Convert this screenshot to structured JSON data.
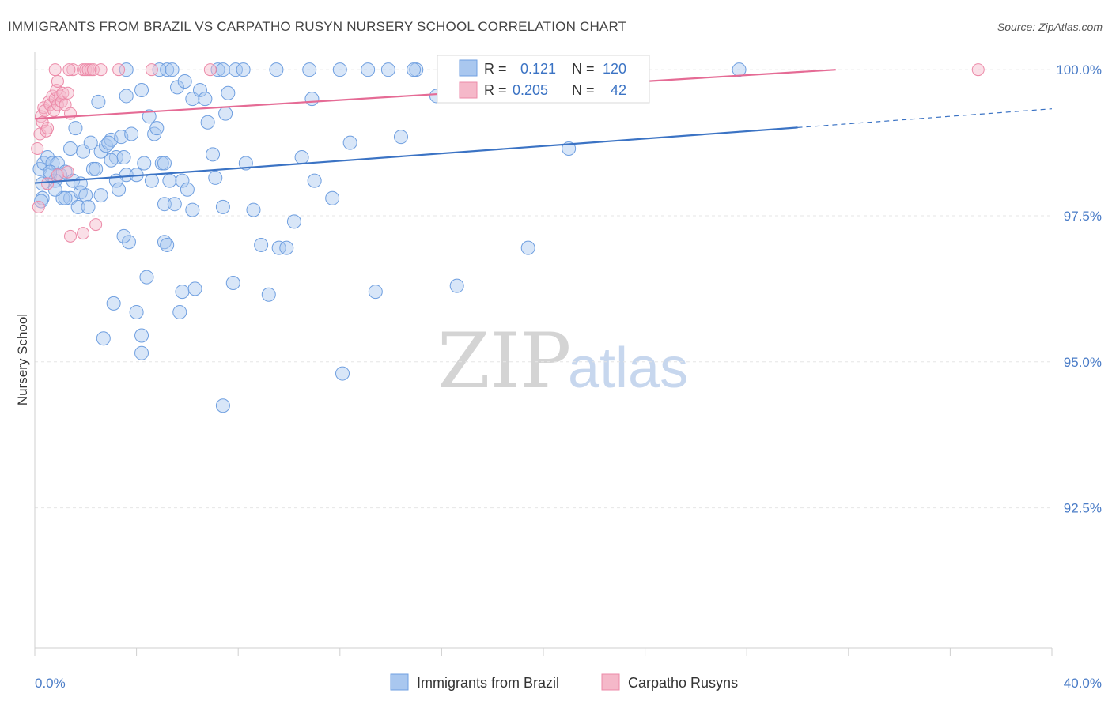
{
  "chart_data": {
    "type": "scatter",
    "title": "IMMIGRANTS FROM BRAZIL VS CARPATHO RUSYN NURSERY SCHOOL CORRELATION CHART",
    "source": "Source: ZipAtlas.com",
    "ylabel": "Nursery School",
    "xlabel": "",
    "xlim": [
      0,
      40
    ],
    "ylim": [
      90.1,
      100.3
    ],
    "x_tick_labels": [
      {
        "value": 0,
        "label": "0.0%"
      },
      {
        "value": 40,
        "label": "40.0%"
      }
    ],
    "y_tick_labels": [
      {
        "value": 100,
        "label": "100.0%"
      },
      {
        "value": 97.5,
        "label": "97.5%"
      },
      {
        "value": 95,
        "label": "95.0%"
      },
      {
        "value": 92.5,
        "label": "92.5%"
      }
    ],
    "legend": [
      {
        "name": "Immigrants from Brazil",
        "color": "#a9c7ef"
      },
      {
        "name": "Carpatho Rusyns",
        "color": "#f5b8c9"
      }
    ],
    "stats_box": {
      "rows": [
        {
          "r_label": "R =",
          "r_value": "0.121",
          "n_label": "N =",
          "n_value": "120"
        },
        {
          "r_label": "R =",
          "r_value": "0.205",
          "n_label": "N =",
          "n_value": "42"
        }
      ]
    },
    "watermark": {
      "zip": "ZIP",
      "atlas": "atlas"
    },
    "series": [
      {
        "name": "Immigrants from Brazil",
        "color": "#a9c7ef",
        "stroke": "#6f9fe0",
        "trend": {
          "x0": 0,
          "y0": 98.06,
          "x1": 30,
          "y1": 99.01,
          "dash_to_x": 40,
          "dash_to_y": 99.33,
          "color": "#3b73c4"
        },
        "points": [
          [
            0.2,
            98.3
          ],
          [
            0.3,
            98.05
          ],
          [
            0.3,
            97.8
          ],
          [
            0.35,
            98.4
          ],
          [
            0.5,
            98.5
          ],
          [
            0.6,
            98.2
          ],
          [
            0.7,
            98.4
          ],
          [
            0.8,
            98.1
          ],
          [
            0.9,
            98.4
          ],
          [
            1.0,
            98.2
          ],
          [
            1.2,
            98.25
          ],
          [
            1.5,
            98.1
          ],
          [
            1.1,
            97.8
          ],
          [
            1.4,
            97.8
          ],
          [
            1.8,
            97.9
          ],
          [
            1.7,
            97.65
          ],
          [
            2.0,
            97.85
          ],
          [
            1.9,
            98.6
          ],
          [
            2.3,
            98.3
          ],
          [
            2.2,
            98.75
          ],
          [
            2.6,
            98.6
          ],
          [
            2.8,
            98.7
          ],
          [
            3.0,
            98.8
          ],
          [
            3.2,
            98.5
          ],
          [
            3.4,
            98.85
          ],
          [
            3.5,
            98.5
          ],
          [
            3.6,
            98.2
          ],
          [
            3.8,
            98.9
          ],
          [
            4.0,
            98.2
          ],
          [
            4.3,
            98.4
          ],
          [
            4.6,
            98.1
          ],
          [
            4.7,
            98.9
          ],
          [
            5.0,
            98.4
          ],
          [
            5.3,
            98.1
          ],
          [
            5.8,
            98.1
          ],
          [
            6.0,
            97.95
          ],
          [
            6.2,
            97.6
          ],
          [
            5.1,
            97.7
          ],
          [
            5.5,
            97.7
          ],
          [
            3.2,
            98.1
          ],
          [
            3.3,
            97.95
          ],
          [
            2.6,
            97.85
          ],
          [
            1.8,
            98.05
          ],
          [
            2.4,
            98.3
          ],
          [
            1.6,
            99.0
          ],
          [
            2.5,
            99.45
          ],
          [
            3.6,
            99.55
          ],
          [
            4.2,
            99.65
          ],
          [
            4.5,
            99.2
          ],
          [
            4.8,
            99.0
          ],
          [
            4.9,
            100.0
          ],
          [
            5.2,
            100.0
          ],
          [
            5.4,
            100.0
          ],
          [
            5.6,
            99.7
          ],
          [
            5.9,
            99.8
          ],
          [
            6.2,
            99.5
          ],
          [
            6.5,
            99.65
          ],
          [
            6.7,
            99.5
          ],
          [
            6.8,
            99.1
          ],
          [
            7.0,
            98.55
          ],
          [
            7.2,
            100.0
          ],
          [
            7.4,
            100.0
          ],
          [
            7.5,
            99.25
          ],
          [
            7.6,
            99.6
          ],
          [
            7.9,
            100.0
          ],
          [
            8.2,
            100.0
          ],
          [
            8.3,
            98.4
          ],
          [
            7.1,
            98.15
          ],
          [
            7.4,
            97.65
          ],
          [
            8.6,
            97.6
          ],
          [
            8.9,
            97.0
          ],
          [
            9.6,
            96.95
          ],
          [
            9.9,
            96.95
          ],
          [
            10.2,
            97.4
          ],
          [
            10.5,
            98.5
          ],
          [
            10.9,
            99.5
          ],
          [
            11.0,
            98.1
          ],
          [
            11.7,
            97.8
          ],
          [
            12.0,
            100.0
          ],
          [
            12.4,
            98.75
          ],
          [
            13.1,
            100.0
          ],
          [
            13.9,
            100.0
          ],
          [
            14.4,
            98.85
          ],
          [
            15.0,
            100.0
          ],
          [
            15.8,
            99.55
          ],
          [
            9.5,
            100.0
          ],
          [
            3.6,
            100.0
          ],
          [
            5.1,
            98.4
          ],
          [
            3.7,
            97.05
          ],
          [
            3.5,
            97.15
          ],
          [
            5.1,
            97.05
          ],
          [
            5.2,
            97.0
          ],
          [
            4.4,
            96.45
          ],
          [
            5.8,
            96.2
          ],
          [
            6.3,
            96.25
          ],
          [
            7.8,
            96.35
          ],
          [
            9.2,
            96.15
          ],
          [
            3.1,
            96.0
          ],
          [
            4.0,
            95.85
          ],
          [
            5.7,
            95.85
          ],
          [
            4.2,
            95.45
          ],
          [
            2.7,
            95.4
          ],
          [
            4.2,
            95.15
          ],
          [
            12.1,
            94.8
          ],
          [
            7.4,
            94.25
          ],
          [
            13.4,
            96.2
          ],
          [
            16.6,
            96.3
          ],
          [
            19.4,
            96.95
          ],
          [
            21.0,
            98.65
          ],
          [
            27.7,
            100.0
          ],
          [
            14.9,
            100.0
          ],
          [
            10.8,
            100.0
          ],
          [
            2.9,
            98.75
          ],
          [
            1.4,
            98.65
          ],
          [
            0.6,
            98.25
          ],
          [
            2.1,
            97.65
          ],
          [
            1.2,
            97.8
          ],
          [
            0.8,
            97.95
          ],
          [
            0.25,
            97.75
          ],
          [
            3.0,
            98.45
          ]
        ]
      },
      {
        "name": "Carpatho Rusyns",
        "color": "#f5b8c9",
        "stroke": "#ec8aa8",
        "trend": {
          "x0": 0,
          "y0": 99.16,
          "x1": 31.5,
          "y1": 100.0,
          "color": "#e56b95"
        },
        "points": [
          [
            0.1,
            98.65
          ],
          [
            0.2,
            98.9
          ],
          [
            0.25,
            99.2
          ],
          [
            0.3,
            99.1
          ],
          [
            0.35,
            99.35
          ],
          [
            0.4,
            99.3
          ],
          [
            0.45,
            98.95
          ],
          [
            0.5,
            99.0
          ],
          [
            0.55,
            99.45
          ],
          [
            0.6,
            99.4
          ],
          [
            0.7,
            99.55
          ],
          [
            0.75,
            99.3
          ],
          [
            0.8,
            99.5
          ],
          [
            0.85,
            99.65
          ],
          [
            0.9,
            99.4
          ],
          [
            1.0,
            99.55
          ],
          [
            1.05,
            99.45
          ],
          [
            1.1,
            99.6
          ],
          [
            1.2,
            99.4
          ],
          [
            1.3,
            99.6
          ],
          [
            1.4,
            99.25
          ],
          [
            0.9,
            99.8
          ],
          [
            1.5,
            100.0
          ],
          [
            1.9,
            100.0
          ],
          [
            2.0,
            100.0
          ],
          [
            2.1,
            100.0
          ],
          [
            2.2,
            100.0
          ],
          [
            2.3,
            100.0
          ],
          [
            1.35,
            100.0
          ],
          [
            0.8,
            100.0
          ],
          [
            2.6,
            100.0
          ],
          [
            3.3,
            100.0
          ],
          [
            4.6,
            100.0
          ],
          [
            6.9,
            100.0
          ],
          [
            0.15,
            97.65
          ],
          [
            0.5,
            98.05
          ],
          [
            0.9,
            98.2
          ],
          [
            1.3,
            98.25
          ],
          [
            1.4,
            97.15
          ],
          [
            1.9,
            97.2
          ],
          [
            2.4,
            97.35
          ],
          [
            37.1,
            100.0
          ]
        ]
      }
    ]
  }
}
